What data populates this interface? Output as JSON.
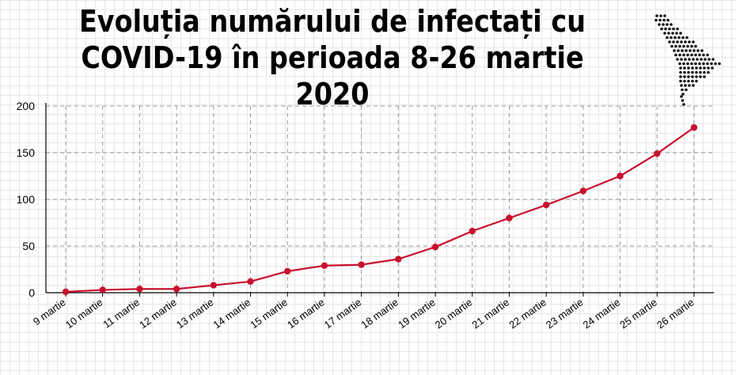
{
  "title": {
    "line1": "Evoluția numărului de infectați cu",
    "line2": "COVID-19 în perioada 8-26 martie 2020"
  },
  "map_icon": "moldova-dotted-map-icon",
  "colors": {
    "line": "#c8102e",
    "grid": "#999999",
    "axis": "#000000"
  },
  "chart_data": {
    "type": "line",
    "title": "Evoluția numărului de infectați cu COVID-19 în perioada 8-26 martie 2020",
    "xlabel": "",
    "ylabel": "",
    "ylim": [
      0,
      200
    ],
    "yticks": [
      0,
      50,
      100,
      150,
      200
    ],
    "grid": true,
    "categories": [
      "9 martie",
      "10 martie",
      "11 martie",
      "12 martie",
      "13 martie",
      "14 martie",
      "15 martie",
      "16 martie",
      "17 martie",
      "18 martie",
      "19 martie",
      "20 martie",
      "21 martie",
      "22 martie",
      "23 martie",
      "24 martie",
      "25 martie",
      "26 martie"
    ],
    "series": [
      {
        "values": [
          1,
          3,
          4,
          4,
          8,
          12,
          23,
          29,
          30,
          36,
          49,
          66,
          80,
          94,
          109,
          125,
          149,
          177
        ]
      }
    ]
  }
}
